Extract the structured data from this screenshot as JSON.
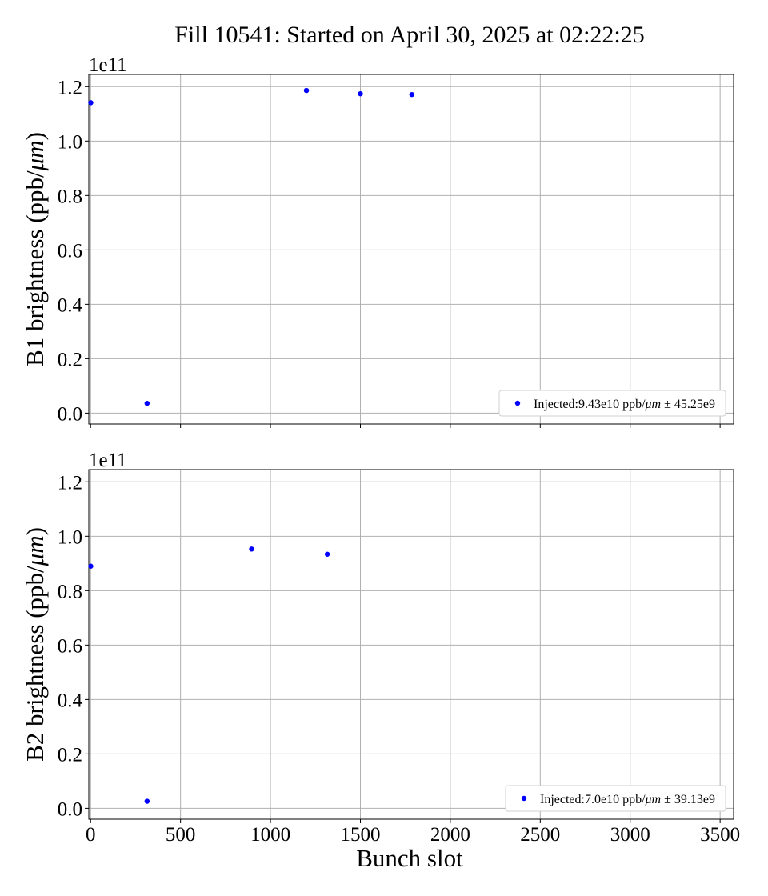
{
  "figure": {
    "title": "Fill 10541: Started on April 30, 2025 at 02:22:25"
  },
  "chart_data": [
    {
      "type": "scatter",
      "ylabel": "B1 brightness (ppb/μm)",
      "xlabel": "",
      "offset_label": "1e11",
      "xlim": [
        -10,
        3575
      ],
      "ylim": [
        -0.04,
        1.245
      ],
      "y_multiplier": 100000000000.0,
      "x_ticks": [
        0,
        500,
        1000,
        1500,
        2000,
        2500,
        3000,
        3500
      ],
      "x_tick_labels_visible": false,
      "y_ticks": [
        0.0,
        0.2,
        0.4,
        0.6,
        0.8,
        1.0,
        1.2
      ],
      "y_tick_labels": [
        "0.0",
        "0.2",
        "0.4",
        "0.6",
        "0.8",
        "1.0",
        "1.2"
      ],
      "grid": true,
      "legend": "lower-right",
      "color": "#0000ff",
      "series": [
        {
          "name": "Injected:9.43e10 ppb/μm ± 45.25e9",
          "x": [
            1,
            314,
            1200,
            1500,
            1786
          ],
          "y": [
            1.141,
            0.036,
            1.186,
            1.174,
            1.171
          ]
        }
      ]
    },
    {
      "type": "scatter",
      "ylabel": "B2 brightness (ppb/μm)",
      "xlabel": "Bunch slot",
      "offset_label": "1e11",
      "xlim": [
        -10,
        3575
      ],
      "ylim": [
        -0.04,
        1.245
      ],
      "y_multiplier": 100000000000.0,
      "x_ticks": [
        0,
        500,
        1000,
        1500,
        2000,
        2500,
        3000,
        3500
      ],
      "x_tick_labels": [
        "0",
        "500",
        "1000",
        "1500",
        "2000",
        "2500",
        "3000",
        "3500"
      ],
      "x_tick_labels_visible": true,
      "y_ticks": [
        0.0,
        0.2,
        0.4,
        0.6,
        0.8,
        1.0,
        1.2
      ],
      "y_tick_labels": [
        "0.0",
        "0.2",
        "0.4",
        "0.6",
        "0.8",
        "1.0",
        "1.2"
      ],
      "grid": true,
      "legend": "lower-right",
      "color": "#0000ff",
      "series": [
        {
          "name": "Injected:7.0e10 ppb/μm ± 39.13e9",
          "x": [
            1,
            314,
            895,
            1316
          ],
          "y": [
            0.89,
            0.026,
            0.953,
            0.934
          ]
        }
      ]
    }
  ]
}
